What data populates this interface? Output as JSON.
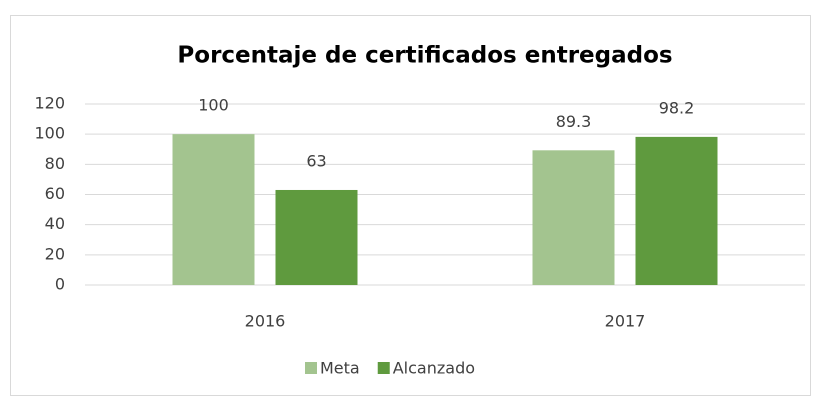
{
  "chart_data": {
    "type": "bar",
    "title": "Porcentaje de certificados entregados",
    "categories": [
      "2016",
      "2017"
    ],
    "series": [
      {
        "name": "Meta",
        "color": "#a3c48f",
        "values": [
          100,
          89.3
        ]
      },
      {
        "name": "Alcanzado",
        "color": "#5f9a3e",
        "values": [
          63,
          98.2
        ]
      }
    ],
    "ylim": [
      0,
      120
    ],
    "yticks": [
      0,
      20,
      40,
      60,
      80,
      100,
      120
    ],
    "grid": true,
    "legend": "bottom"
  }
}
